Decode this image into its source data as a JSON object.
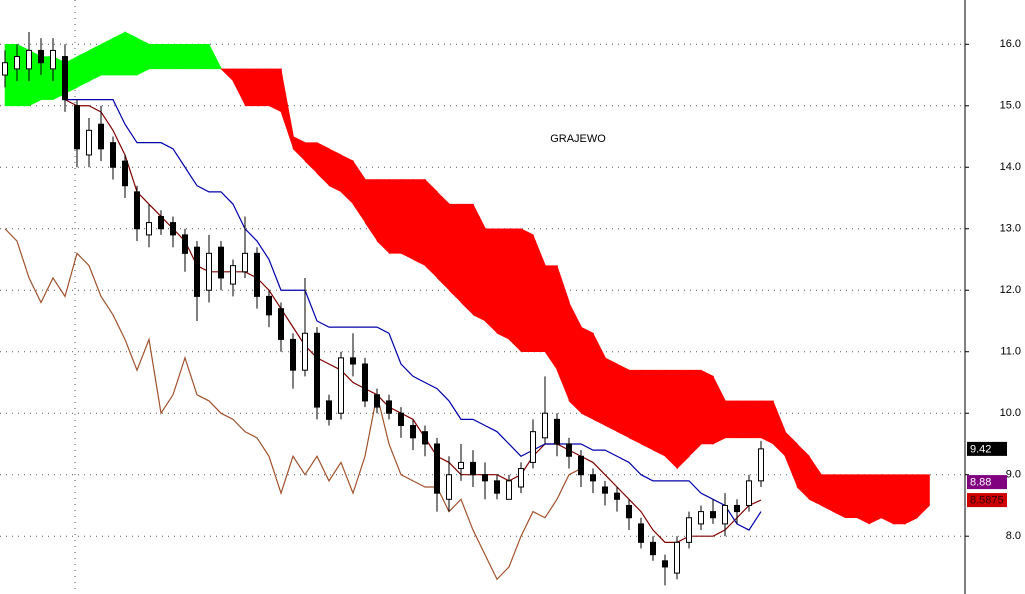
{
  "chart_data": {
    "type": "candlestick",
    "title": "GRAJEWO",
    "ylim": [
      7.06,
      16.72
    ],
    "yticks": [
      {
        "value": 8,
        "label": "8.0"
      },
      {
        "value": 9,
        "label": "9.0"
      },
      {
        "value": 10,
        "label": "10.0"
      },
      {
        "value": 11,
        "label": "11.0"
      },
      {
        "value": 12,
        "label": "12.0"
      },
      {
        "value": 13,
        "label": "13.0"
      },
      {
        "value": 14,
        "label": "14.0"
      },
      {
        "value": 15,
        "label": "15.0"
      },
      {
        "value": 16,
        "label": "16.0"
      }
    ],
    "grid": true,
    "candles": {
      "up_color": "#ffffff",
      "down_color": "#000000",
      "open": [
        15.5,
        15.6,
        15.6,
        15.9,
        15.6,
        15.8,
        15.0,
        14.2,
        14.7,
        14.4,
        14.1,
        13.6,
        12.9,
        13.2,
        13.1,
        12.9,
        12.7,
        12.0,
        12.7,
        12.1,
        12.3,
        12.6,
        11.9,
        11.7,
        11.2,
        10.7,
        11.3,
        10.2,
        10.0,
        10.9,
        10.8,
        10.3,
        10.2,
        10.0,
        9.8,
        9.7,
        9.5,
        8.6,
        9.1,
        9.2,
        9.0,
        8.9,
        8.6,
        8.8,
        9.2,
        9.6,
        9.9,
        9.5,
        9.3,
        9.0,
        8.8,
        8.7,
        8.5,
        8.2,
        7.9,
        7.6,
        7.4,
        7.9,
        8.2,
        8.4,
        8.2,
        8.5,
        8.5,
        8.9
      ],
      "high": [
        15.9,
        16.0,
        16.2,
        16.1,
        16.1,
        16.0,
        15.1,
        14.8,
        15.0,
        14.5,
        14.2,
        13.7,
        13.4,
        13.3,
        13.2,
        13.0,
        12.8,
        12.9,
        12.8,
        12.5,
        13.2,
        12.7,
        12.0,
        11.8,
        11.3,
        12.2,
        11.4,
        10.3,
        11.0,
        11.3,
        10.9,
        10.4,
        10.3,
        10.1,
        9.9,
        9.8,
        9.6,
        9.3,
        9.5,
        9.4,
        9.2,
        9.0,
        9.0,
        9.2,
        9.9,
        10.6,
        10.0,
        9.6,
        9.4,
        9.1,
        8.9,
        8.8,
        8.6,
        8.3,
        8.0,
        7.7,
        8.0,
        8.4,
        8.5,
        8.6,
        8.7,
        8.6,
        9.0,
        9.55
      ],
      "low": [
        15.3,
        15.4,
        15.4,
        15.5,
        15.4,
        14.9,
        14.0,
        14.0,
        14.1,
        13.8,
        13.5,
        12.8,
        12.7,
        12.9,
        12.7,
        12.3,
        11.5,
        11.8,
        12.0,
        11.9,
        12.2,
        11.7,
        11.4,
        11.0,
        10.4,
        10.6,
        9.9,
        9.8,
        9.9,
        10.6,
        10.1,
        10.0,
        9.9,
        9.6,
        9.4,
        9.3,
        8.4,
        8.4,
        8.9,
        8.8,
        8.6,
        8.6,
        8.6,
        8.7,
        9.1,
        9.5,
        9.3,
        9.1,
        8.8,
        8.7,
        8.5,
        8.4,
        8.1,
        7.8,
        7.6,
        7.2,
        7.3,
        7.8,
        8.1,
        8.2,
        8.0,
        8.2,
        8.4,
        8.8
      ],
      "close": [
        15.7,
        15.8,
        15.9,
        15.7,
        15.9,
        15.1,
        14.3,
        14.6,
        14.3,
        14.0,
        13.7,
        13.0,
        13.1,
        13.0,
        12.9,
        12.6,
        11.9,
        12.6,
        12.2,
        12.4,
        12.6,
        11.9,
        11.6,
        11.2,
        10.7,
        11.3,
        10.1,
        9.9,
        10.9,
        10.8,
        10.2,
        10.1,
        10.0,
        9.8,
        9.6,
        9.5,
        8.7,
        9.0,
        9.2,
        9.0,
        8.9,
        8.7,
        8.9,
        9.1,
        9.7,
        10.0,
        9.5,
        9.3,
        9.0,
        8.9,
        8.7,
        8.6,
        8.3,
        7.9,
        7.7,
        7.5,
        7.9,
        8.3,
        8.4,
        8.3,
        8.5,
        8.4,
        8.9,
        9.42
      ]
    },
    "cloud": {
      "up_color": "#00ff00",
      "down_color": "#ff0000",
      "span_a": [
        16.0,
        16.0,
        15.9,
        15.8,
        15.8,
        15.7,
        15.8,
        15.9,
        16.0,
        16.1,
        16.2,
        16.1,
        16.0,
        16.0,
        16.0,
        16.0,
        16.0,
        16.0,
        15.6,
        15.4,
        15.0,
        15.0,
        15.0,
        14.9,
        14.3,
        14.1,
        13.9,
        13.7,
        13.6,
        13.4,
        13.1,
        12.8,
        12.6,
        12.6,
        12.5,
        12.4,
        12.2,
        12.0,
        11.8,
        11.6,
        11.5,
        11.3,
        11.2,
        11.0,
        11.0,
        11.0,
        10.7,
        10.2,
        10.0,
        9.9,
        9.8,
        9.7,
        9.6,
        9.5,
        9.4,
        9.3,
        9.1,
        9.3,
        9.5,
        9.5,
        9.6,
        9.6,
        9.6,
        9.6,
        9.5,
        9.3,
        8.8,
        8.6,
        8.5,
        8.4,
        8.3,
        8.3,
        8.2,
        8.3,
        8.2,
        8.2,
        8.3,
        8.5
      ],
      "span_b": [
        15.0,
        15.0,
        15.0,
        15.1,
        15.1,
        15.2,
        15.3,
        15.4,
        15.5,
        15.5,
        15.5,
        15.5,
        15.6,
        15.6,
        15.6,
        15.6,
        15.6,
        15.6,
        15.6,
        15.6,
        15.6,
        15.6,
        15.6,
        15.6,
        14.5,
        14.4,
        14.4,
        14.3,
        14.2,
        14.1,
        13.8,
        13.8,
        13.8,
        13.8,
        13.8,
        13.8,
        13.6,
        13.4,
        13.4,
        13.4,
        13.0,
        13.0,
        13.0,
        13.0,
        12.9,
        12.4,
        12.4,
        11.8,
        11.4,
        11.3,
        10.9,
        10.8,
        10.7,
        10.7,
        10.7,
        10.7,
        10.7,
        10.7,
        10.7,
        10.6,
        10.2,
        10.2,
        10.2,
        10.2,
        10.2,
        9.7,
        9.5,
        9.3,
        9.0,
        9.0,
        9.0,
        9.0,
        9.0,
        9.0,
        9.0,
        9.0,
        9.0,
        9.0
      ]
    },
    "lines": [
      {
        "color": "#800000",
        "values": [
          null,
          null,
          null,
          null,
          null,
          15.1,
          15.0,
          15.0,
          14.9,
          14.6,
          14.2,
          13.6,
          13.4,
          13.2,
          13.0,
          12.8,
          12.4,
          12.3,
          12.3,
          12.3,
          12.3,
          12.2,
          12.0,
          11.7,
          11.4,
          11.1,
          10.9,
          10.8,
          10.7,
          10.5,
          10.4,
          10.3,
          10.1,
          10.0,
          9.9,
          9.6,
          9.3,
          9.2,
          9.0,
          9.0,
          9.0,
          9.0,
          8.9,
          9.0,
          9.3,
          9.5,
          9.5,
          9.4,
          9.3,
          9.2,
          9.0,
          8.8,
          8.6,
          8.4,
          8.1,
          7.9,
          7.9,
          8.0,
          8.0,
          8.0,
          8.1,
          8.3,
          8.5,
          8.5875
        ]
      },
      {
        "color": "#0000aa",
        "values": [
          null,
          null,
          null,
          null,
          null,
          15.1,
          15.1,
          15.1,
          15.1,
          15.1,
          14.7,
          14.4,
          14.4,
          14.4,
          14.3,
          14.0,
          13.7,
          13.6,
          13.6,
          13.4,
          13.0,
          12.8,
          12.5,
          12.0,
          12.0,
          12.0,
          11.5,
          11.4,
          11.4,
          11.4,
          11.4,
          11.4,
          11.3,
          10.8,
          10.6,
          10.5,
          10.4,
          10.2,
          9.9,
          9.9,
          9.8,
          9.7,
          9.5,
          9.3,
          9.4,
          9.5,
          9.5,
          9.5,
          9.5,
          9.4,
          9.4,
          9.3,
          9.2,
          9.0,
          8.9,
          8.9,
          8.9,
          8.9,
          8.7,
          8.6,
          8.5,
          8.2,
          8.1,
          8.4
        ]
      },
      {
        "color": "#a0522d",
        "values": [
          13.0,
          12.8,
          12.2,
          11.8,
          12.2,
          11.9,
          12.6,
          12.4,
          11.9,
          11.6,
          11.2,
          10.7,
          11.2,
          10.0,
          10.3,
          10.9,
          10.3,
          10.2,
          10.0,
          9.9,
          9.7,
          9.6,
          9.3,
          8.7,
          9.3,
          9.0,
          9.3,
          8.9,
          9.2,
          8.7,
          9.3,
          10.3,
          9.5,
          9.0,
          8.9,
          8.8,
          8.8,
          8.4,
          8.6,
          8.1,
          7.7,
          7.3,
          7.5,
          8.0,
          8.4,
          8.3,
          8.6,
          9.0,
          9.1
        ]
      }
    ],
    "markers": [
      {
        "value": 9.42,
        "label": "9.42",
        "color": "#000000",
        "text_color": "#ffffff"
      },
      {
        "value": 8.88,
        "label": "8.88",
        "color": "#800080",
        "text_color": "#ffffff"
      },
      {
        "value": 8.5875,
        "label": "8.5875",
        "color": "#cc0000",
        "text_color": "#330000"
      }
    ]
  }
}
